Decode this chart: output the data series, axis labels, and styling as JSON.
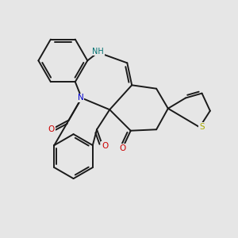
{
  "bg_color": "#e6e6e6",
  "bond_color": "#1a1a1a",
  "bond_width": 1.4,
  "atom_colors": {
    "N": "#0000cc",
    "NH": "#007070",
    "O": "#cc0000",
    "S": "#aaaa00"
  },
  "figsize": [
    3.0,
    3.0
  ],
  "dpi": 100
}
